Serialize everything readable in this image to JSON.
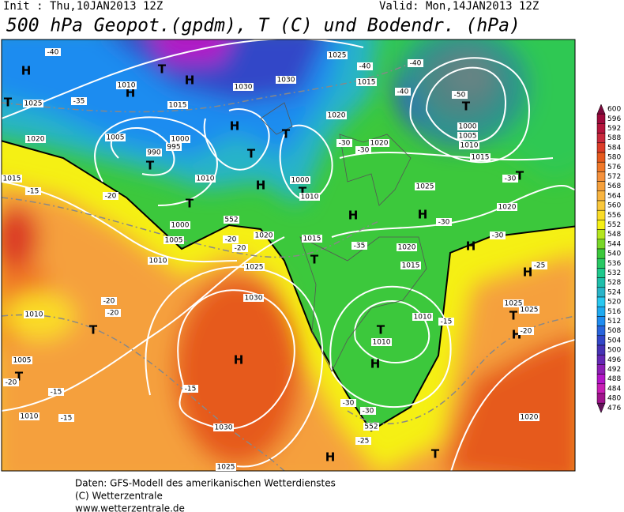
{
  "header": {
    "init": "Init : Thu,10JAN2013 12Z",
    "valid": "Valid: Mon,14JAN2013 12Z",
    "title": "500 hPa Geopot.(gpdm), T (C) und Bodendr. (hPa)"
  },
  "legend": {
    "levels": [
      600,
      596,
      592,
      588,
      584,
      580,
      576,
      572,
      568,
      564,
      560,
      556,
      552,
      548,
      544,
      540,
      536,
      532,
      528,
      524,
      520,
      516,
      512,
      508,
      504,
      500,
      496,
      492,
      488,
      484,
      480,
      476
    ],
    "colors": [
      "#7a0a3c",
      "#9e0a3c",
      "#b4143c",
      "#c8283c",
      "#dc3c28",
      "#e65a1e",
      "#f07828",
      "#f5913c",
      "#f5a03c",
      "#f8b440",
      "#fac83c",
      "#fadc28",
      "#f5f014",
      "#b4e61e",
      "#78d728",
      "#3cc83c",
      "#28c864",
      "#1ec88c",
      "#1ebeaa",
      "#28b4c8",
      "#28c8f0",
      "#1eaaf0",
      "#1e8cf0",
      "#2864dc",
      "#3246c8",
      "#4632b4",
      "#6428b4",
      "#8c1eb4",
      "#b414c8",
      "#c81eb4",
      "#a0148c",
      "#64145a"
    ]
  },
  "map": {
    "labels": [
      "H",
      "T",
      "T",
      "H",
      "H",
      "-40",
      "1025",
      "-35",
      "1010",
      "1015",
      "1030",
      "1030",
      "1025",
      "-40",
      "1015",
      "-40",
      "-40",
      "-50",
      "T",
      "1000",
      "1005",
      "1010",
      "1015",
      "1020",
      "1020",
      "1005",
      "990",
      "995",
      "1000",
      "T",
      "1010",
      "T",
      "H",
      "T",
      "T",
      "H",
      "T",
      "1000",
      "1010",
      "-30",
      "-30",
      "1020",
      "1025",
      "H",
      "H",
      "-30",
      "1020",
      "-30",
      "T",
      "-30",
      "H",
      "-25",
      "H",
      "1015",
      "-15",
      "-20",
      "1005",
      "1000",
      "1020",
      "-20",
      "-20",
      "1010",
      "1025",
      "1015",
      "T",
      "-35",
      "1020",
      "1015",
      "-20",
      "-20",
      "1010",
      "T",
      "1030",
      "H",
      "T",
      "1010",
      "H",
      "1010",
      "-15",
      "1025",
      "1025",
      "T",
      "H",
      "-20",
      "1005",
      "T",
      "-20",
      "-15",
      "1010",
      "-15",
      "-15",
      "1030",
      "-30",
      "-30",
      "1020",
      "H",
      "T",
      "-25",
      "1025",
      "552",
      "552"
    ]
  },
  "footer": {
    "lines": [
      "Daten: GFS-Modell des amerikanischen Wetterdienstes",
      "(C) Wetterzentrale",
      "www.wetterzentrale.de"
    ]
  }
}
